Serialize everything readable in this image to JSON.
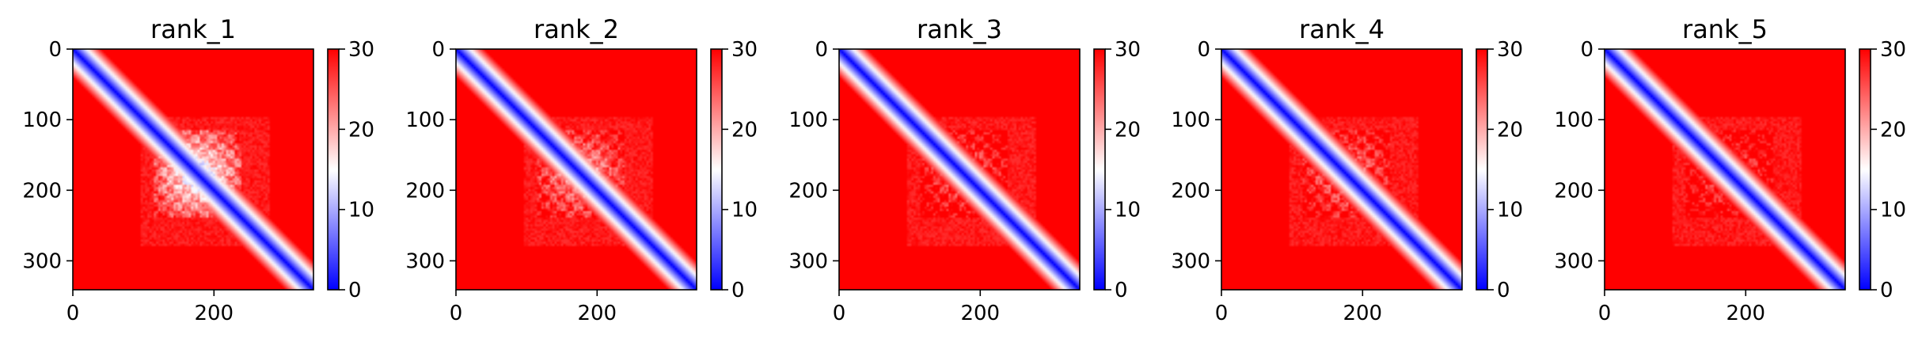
{
  "chart_data": [
    {
      "type": "heatmap",
      "title": "rank_1",
      "xticks": [
        "0",
        "200"
      ],
      "yticks": [
        "0",
        "100",
        "200",
        "300"
      ],
      "xlim": [
        0,
        341
      ],
      "ylim": [
        341,
        0
      ],
      "n": 341,
      "colorbar": {
        "ticks": [
          "0",
          "10",
          "20",
          "30"
        ],
        "range": [
          0,
          30
        ],
        "colormap": [
          "#0000ff",
          "#ffffff",
          "#ff0000"
        ]
      },
      "domain_block": [
        115,
        240
      ],
      "domain_strength": 1.0
    },
    {
      "type": "heatmap",
      "title": "rank_2",
      "xticks": [
        "0",
        "200"
      ],
      "yticks": [
        "0",
        "100",
        "200",
        "300"
      ],
      "xlim": [
        0,
        341
      ],
      "ylim": [
        341,
        0
      ],
      "n": 341,
      "colorbar": {
        "ticks": [
          "0",
          "10",
          "20",
          "30"
        ],
        "range": [
          0,
          30
        ],
        "colormap": [
          "#0000ff",
          "#ffffff",
          "#ff0000"
        ]
      },
      "domain_block": [
        115,
        240
      ],
      "domain_strength": 0.7
    },
    {
      "type": "heatmap",
      "title": "rank_3",
      "xticks": [
        "0",
        "200"
      ],
      "yticks": [
        "0",
        "100",
        "200",
        "300"
      ],
      "xlim": [
        0,
        341
      ],
      "ylim": [
        341,
        0
      ],
      "n": 341,
      "colorbar": {
        "ticks": [
          "0",
          "10",
          "20",
          "30"
        ],
        "range": [
          0,
          30
        ],
        "colormap": [
          "#0000ff",
          "#ffffff",
          "#ff0000"
        ]
      },
      "domain_block": [
        115,
        240
      ],
      "domain_strength": 0.45
    },
    {
      "type": "heatmap",
      "title": "rank_4",
      "xticks": [
        "0",
        "200"
      ],
      "yticks": [
        "0",
        "100",
        "200",
        "300"
      ],
      "xlim": [
        0,
        341
      ],
      "ylim": [
        341,
        0
      ],
      "n": 341,
      "colorbar": {
        "ticks": [
          "0",
          "10",
          "20",
          "30"
        ],
        "range": [
          0,
          30
        ],
        "colormap": [
          "#0000ff",
          "#ffffff",
          "#ff0000"
        ]
      },
      "domain_block": [
        115,
        240
      ],
      "domain_strength": 0.55
    },
    {
      "type": "heatmap",
      "title": "rank_5",
      "xticks": [
        "0",
        "200"
      ],
      "yticks": [
        "0",
        "100",
        "200",
        "300"
      ],
      "xlim": [
        0,
        341
      ],
      "ylim": [
        341,
        0
      ],
      "n": 341,
      "colorbar": {
        "ticks": [
          "0",
          "10",
          "20",
          "30"
        ],
        "range": [
          0,
          30
        ],
        "colormap": [
          "#0000ff",
          "#ffffff",
          "#ff0000"
        ]
      },
      "domain_block": [
        115,
        240
      ],
      "domain_strength": 0.4
    }
  ]
}
